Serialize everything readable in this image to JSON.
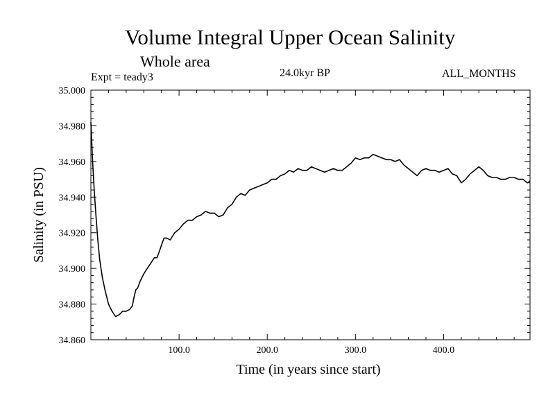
{
  "header": {
    "title": "Volume Integral Upper Ocean Salinity",
    "subtitle": "Whole area",
    "experiment": "Expt = teady3",
    "period": "24.0kyr BP",
    "months": "ALL_MONTHS"
  },
  "chart_data": {
    "type": "line",
    "title": "Volume Integral Upper Ocean Salinity",
    "xlabel": "Time (in years since start)",
    "ylabel": "Salinity (in PSU)",
    "xlim": [
      0,
      498
    ],
    "ylim": [
      34.86,
      35.0
    ],
    "x_ticks": [
      100,
      200,
      300,
      400
    ],
    "x_tick_labels": [
      "100.0",
      "200.0",
      "300.0",
      "400.0"
    ],
    "y_ticks": [
      34.86,
      34.88,
      34.9,
      34.92,
      34.94,
      34.96,
      34.98,
      35.0
    ],
    "y_tick_labels": [
      "34.860",
      "34.880",
      "34.900",
      "34.920",
      "34.940",
      "34.960",
      "34.980",
      "35.000"
    ],
    "grid": false,
    "series": [
      {
        "name": "Salinity",
        "x": [
          0,
          2,
          4,
          6,
          8,
          10,
          13,
          16,
          20,
          24,
          28,
          32,
          36,
          40,
          44,
          47,
          49,
          51,
          53,
          56,
          60,
          64,
          68,
          72,
          75,
          78,
          80,
          83,
          86,
          90,
          95,
          100,
          105,
          110,
          115,
          120,
          125,
          130,
          135,
          140,
          145,
          150,
          155,
          160,
          165,
          170,
          175,
          180,
          185,
          190,
          195,
          200,
          205,
          210,
          215,
          220,
          225,
          230,
          235,
          240,
          245,
          250,
          255,
          260,
          265,
          270,
          275,
          280,
          285,
          290,
          295,
          300,
          305,
          310,
          315,
          320,
          325,
          330,
          335,
          340,
          345,
          350,
          355,
          360,
          365,
          370,
          375,
          380,
          385,
          390,
          395,
          400,
          405,
          410,
          415,
          420,
          425,
          430,
          435,
          440,
          445,
          450,
          455,
          460,
          465,
          470,
          475,
          480,
          485,
          490,
          495,
          498
        ],
        "y": [
          34.982,
          34.96,
          34.942,
          34.928,
          34.915,
          34.905,
          34.895,
          34.888,
          34.88,
          34.876,
          34.873,
          34.874,
          34.876,
          34.876,
          34.877,
          34.879,
          34.884,
          34.888,
          34.889,
          34.893,
          34.897,
          34.9,
          34.903,
          34.906,
          34.906,
          34.91,
          34.913,
          34.917,
          34.917,
          34.916,
          34.92,
          34.922,
          34.925,
          34.927,
          34.927,
          34.929,
          34.93,
          34.932,
          34.931,
          34.931,
          34.929,
          34.93,
          34.934,
          34.936,
          34.94,
          34.942,
          34.941,
          34.944,
          34.945,
          34.946,
          34.947,
          34.948,
          34.95,
          34.95,
          34.952,
          34.953,
          34.955,
          34.954,
          34.956,
          34.955,
          34.955,
          34.957,
          34.956,
          34.955,
          34.954,
          34.955,
          34.956,
          34.955,
          34.955,
          34.957,
          34.959,
          34.962,
          34.961,
          34.962,
          34.962,
          34.964,
          34.963,
          34.962,
          34.961,
          34.961,
          34.96,
          34.961,
          34.958,
          34.956,
          34.954,
          34.952,
          34.955,
          34.956,
          34.955,
          34.955,
          34.954,
          34.955,
          34.956,
          34.953,
          34.952,
          34.948,
          34.95,
          34.953,
          34.955,
          34.957,
          34.955,
          34.952,
          34.951,
          34.951,
          34.95,
          34.95,
          34.951,
          34.951,
          34.95,
          34.95,
          34.948,
          34.949
        ]
      }
    ]
  }
}
